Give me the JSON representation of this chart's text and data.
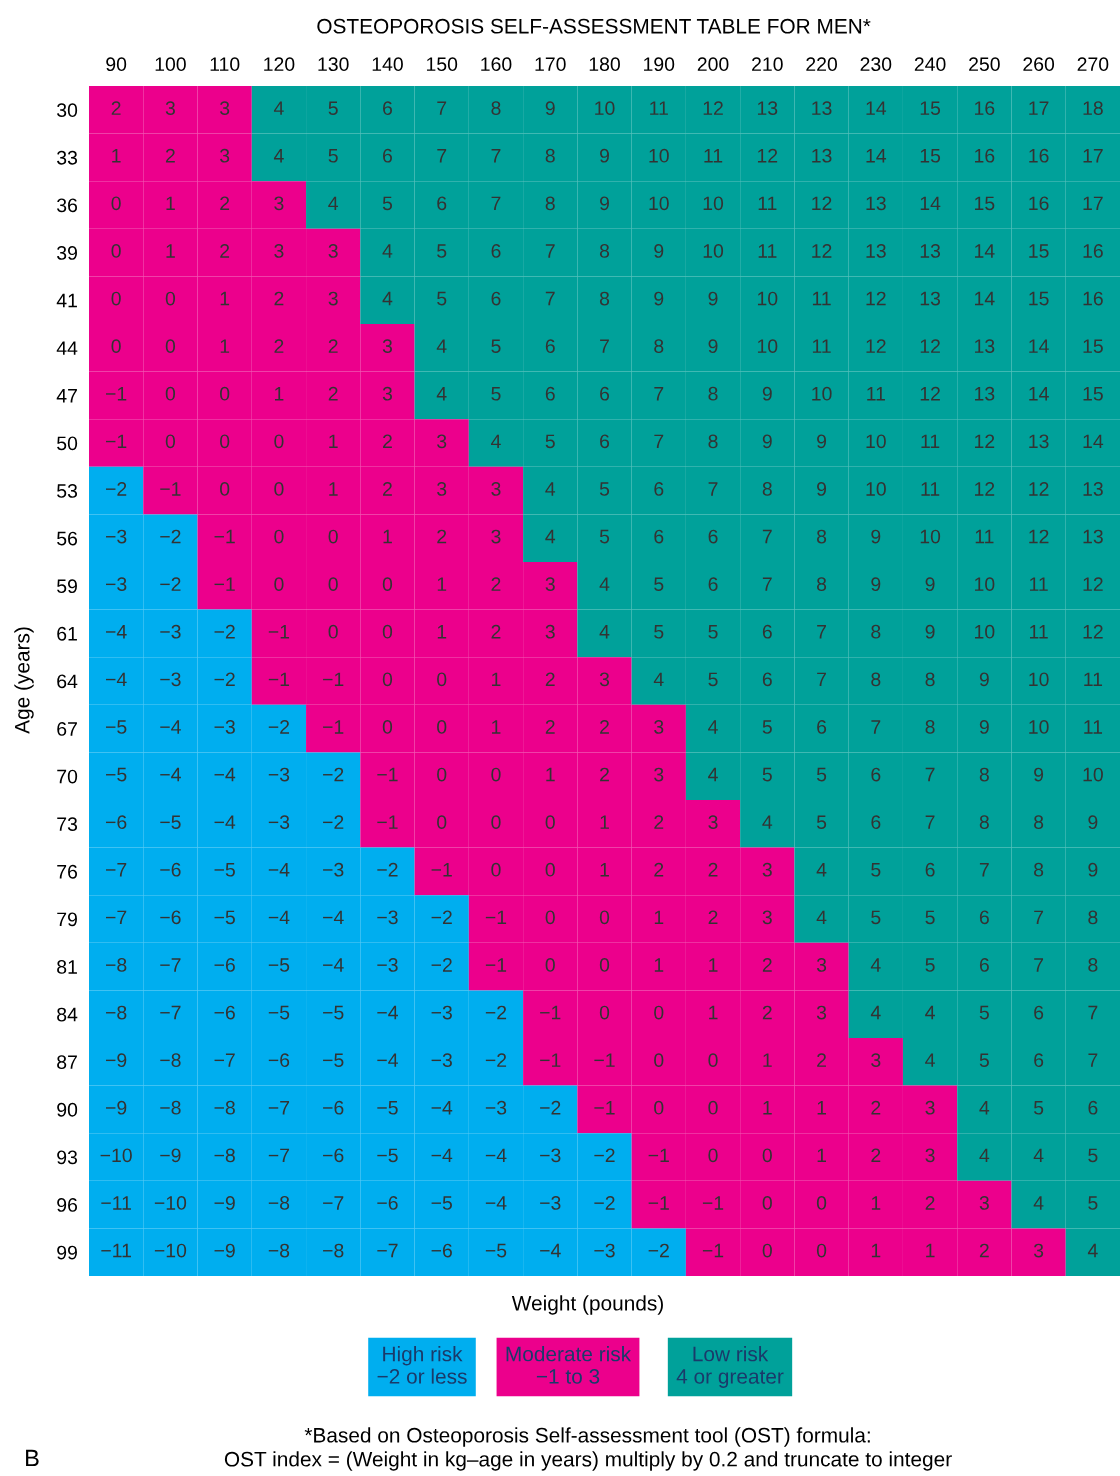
{
  "chart_data": {
    "type": "heatmap",
    "title": "OSTEOPOROSIS SELF-ASSESSMENT TABLE FOR MEN*",
    "xlabel": "Weight (pounds)",
    "ylabel": "Age (years)",
    "categories": [
      "90",
      "100",
      "110",
      "120",
      "130",
      "140",
      "150",
      "160",
      "170",
      "180",
      "190",
      "200",
      "210",
      "220",
      "230",
      "240",
      "250",
      "260",
      "270"
    ],
    "y_categories": [
      "30",
      "33",
      "36",
      "39",
      "41",
      "44",
      "47",
      "50",
      "53",
      "56",
      "59",
      "61",
      "64",
      "67",
      "70",
      "73",
      "76",
      "79",
      "81",
      "84",
      "87",
      "90",
      "93",
      "96",
      "99"
    ],
    "cells": [
      [
        2,
        3,
        3,
        4,
        5,
        6,
        7,
        8,
        9,
        10,
        11,
        12,
        13,
        13,
        14,
        15,
        16,
        17,
        18
      ],
      [
        1,
        2,
        3,
        4,
        5,
        6,
        7,
        7,
        8,
        9,
        10,
        11,
        12,
        13,
        14,
        15,
        16,
        16,
        17
      ],
      [
        0,
        1,
        2,
        3,
        4,
        5,
        6,
        7,
        8,
        9,
        10,
        10,
        11,
        12,
        13,
        14,
        15,
        16,
        17
      ],
      [
        0,
        1,
        2,
        3,
        3,
        4,
        5,
        6,
        7,
        8,
        9,
        10,
        11,
        12,
        13,
        13,
        14,
        15,
        16
      ],
      [
        0,
        0,
        1,
        2,
        3,
        4,
        5,
        6,
        7,
        8,
        9,
        9,
        10,
        11,
        12,
        13,
        14,
        15,
        16
      ],
      [
        0,
        0,
        1,
        2,
        2,
        3,
        4,
        5,
        6,
        7,
        8,
        9,
        10,
        11,
        12,
        12,
        13,
        14,
        15
      ],
      [
        -1,
        0,
        0,
        1,
        2,
        3,
        4,
        5,
        6,
        6,
        7,
        8,
        9,
        10,
        11,
        12,
        13,
        14,
        15
      ],
      [
        -1,
        0,
        0,
        0,
        1,
        2,
        3,
        4,
        5,
        6,
        7,
        8,
        9,
        9,
        10,
        11,
        12,
        13,
        14
      ],
      [
        -2,
        -1,
        0,
        0,
        1,
        2,
        3,
        3,
        4,
        5,
        6,
        7,
        8,
        9,
        10,
        11,
        12,
        12,
        13
      ],
      [
        -3,
        -2,
        -1,
        0,
        0,
        1,
        2,
        3,
        4,
        5,
        6,
        6,
        7,
        8,
        9,
        10,
        11,
        12,
        13
      ],
      [
        -3,
        -2,
        -1,
        0,
        0,
        0,
        1,
        2,
        3,
        4,
        5,
        6,
        7,
        8,
        9,
        9,
        10,
        11,
        12
      ],
      [
        -4,
        -3,
        -2,
        -1,
        0,
        0,
        1,
        2,
        3,
        4,
        5,
        5,
        6,
        7,
        8,
        9,
        10,
        11,
        12
      ],
      [
        -4,
        -3,
        -2,
        -1,
        -1,
        0,
        0,
        1,
        2,
        3,
        4,
        5,
        6,
        7,
        8,
        8,
        9,
        10,
        11
      ],
      [
        -5,
        -4,
        -3,
        -2,
        -1,
        0,
        0,
        1,
        2,
        2,
        3,
        4,
        5,
        6,
        7,
        8,
        9,
        10,
        11
      ],
      [
        -5,
        -4,
        -4,
        -3,
        -2,
        -1,
        0,
        0,
        1,
        2,
        3,
        4,
        5,
        5,
        6,
        7,
        8,
        9,
        10
      ],
      [
        -6,
        -5,
        -4,
        -3,
        -2,
        -1,
        0,
        0,
        0,
        1,
        2,
        3,
        4,
        5,
        6,
        7,
        8,
        8,
        9
      ],
      [
        -7,
        -6,
        -5,
        -4,
        -3,
        -2,
        -1,
        0,
        0,
        1,
        2,
        2,
        3,
        4,
        5,
        6,
        7,
        8,
        9
      ],
      [
        -7,
        -6,
        -5,
        -4,
        -4,
        -3,
        -2,
        -1,
        0,
        0,
        1,
        2,
        3,
        4,
        5,
        5,
        6,
        7,
        8
      ],
      [
        -8,
        -7,
        -6,
        -5,
        -4,
        -3,
        -2,
        -1,
        0,
        0,
        1,
        1,
        2,
        3,
        4,
        5,
        6,
        7,
        8
      ],
      [
        -8,
        -7,
        -6,
        -5,
        -5,
        -4,
        -3,
        -2,
        -1,
        0,
        0,
        1,
        2,
        3,
        4,
        4,
        5,
        6,
        7
      ],
      [
        -9,
        -8,
        -7,
        -6,
        -5,
        -4,
        -3,
        -2,
        -1,
        -1,
        0,
        0,
        1,
        2,
        3,
        4,
        5,
        6,
        7
      ],
      [
        -9,
        -8,
        -8,
        -7,
        -6,
        -5,
        -4,
        -3,
        -2,
        -1,
        0,
        0,
        1,
        1,
        2,
        3,
        4,
        5,
        6
      ],
      [
        -10,
        -9,
        -8,
        -7,
        -6,
        -5,
        -4,
        -4,
        -3,
        -2,
        -1,
        0,
        0,
        1,
        2,
        3,
        4,
        4,
        5
      ],
      [
        -11,
        -10,
        -9,
        -8,
        -7,
        -6,
        -5,
        -4,
        -3,
        -2,
        -1,
        -1,
        0,
        0,
        1,
        2,
        3,
        4,
        5
      ],
      [
        -11,
        -10,
        -9,
        -8,
        -8,
        -7,
        -6,
        -5,
        -4,
        -3,
        -2,
        -1,
        0,
        0,
        1,
        1,
        2,
        3,
        4
      ]
    ],
    "colors": [
      [
        "#ec008c",
        "#ec008c",
        "#ec008c",
        "#00a19a",
        "#00a19a",
        "#00a19a",
        "#00a19a",
        "#00a19a",
        "#00a19a",
        "#00a19a",
        "#00a19a",
        "#00a19a",
        "#00a19a",
        "#00a19a",
        "#00a19a",
        "#00a19a",
        "#00a19a",
        "#00a19a",
        "#00a19a"
      ],
      [
        "#ec008c",
        "#ec008c",
        "#ec008c",
        "#00a19a",
        "#00a19a",
        "#00a19a",
        "#00a19a",
        "#00a19a",
        "#00a19a",
        "#00a19a",
        "#00a19a",
        "#00a19a",
        "#00a19a",
        "#00a19a",
        "#00a19a",
        "#00a19a",
        "#00a19a",
        "#00a19a",
        "#00a19a"
      ],
      [
        "#ec008c",
        "#ec008c",
        "#ec008c",
        "#ec008c",
        "#00a19a",
        "#00a19a",
        "#00a19a",
        "#00a19a",
        "#00a19a",
        "#00a19a",
        "#00a19a",
        "#00a19a",
        "#00a19a",
        "#00a19a",
        "#00a19a",
        "#00a19a",
        "#00a19a",
        "#00a19a",
        "#00a19a"
      ],
      [
        "#ec008c",
        "#ec008c",
        "#ec008c",
        "#ec008c",
        "#ec008c",
        "#00a19a",
        "#00a19a",
        "#00a19a",
        "#00a19a",
        "#00a19a",
        "#00a19a",
        "#00a19a",
        "#00a19a",
        "#00a19a",
        "#00a19a",
        "#00a19a",
        "#00a19a",
        "#00a19a",
        "#00a19a"
      ],
      [
        "#ec008c",
        "#ec008c",
        "#ec008c",
        "#ec008c",
        "#ec008c",
        "#00a19a",
        "#00a19a",
        "#00a19a",
        "#00a19a",
        "#00a19a",
        "#00a19a",
        "#00a19a",
        "#00a19a",
        "#00a19a",
        "#00a19a",
        "#00a19a",
        "#00a19a",
        "#00a19a",
        "#00a19a"
      ],
      [
        "#ec008c",
        "#ec008c",
        "#ec008c",
        "#ec008c",
        "#ec008c",
        "#ec008c",
        "#00a19a",
        "#00a19a",
        "#00a19a",
        "#00a19a",
        "#00a19a",
        "#00a19a",
        "#00a19a",
        "#00a19a",
        "#00a19a",
        "#00a19a",
        "#00a19a",
        "#00a19a",
        "#00a19a"
      ],
      [
        "#ec008c",
        "#ec008c",
        "#ec008c",
        "#ec008c",
        "#ec008c",
        "#ec008c",
        "#00a19a",
        "#00a19a",
        "#00a19a",
        "#00a19a",
        "#00a19a",
        "#00a19a",
        "#00a19a",
        "#00a19a",
        "#00a19a",
        "#00a19a",
        "#00a19a",
        "#00a19a",
        "#00a19a"
      ],
      [
        "#ec008c",
        "#ec008c",
        "#ec008c",
        "#ec008c",
        "#ec008c",
        "#ec008c",
        "#ec008c",
        "#00a19a",
        "#00a19a",
        "#00a19a",
        "#00a19a",
        "#00a19a",
        "#00a19a",
        "#00a19a",
        "#00a19a",
        "#00a19a",
        "#00a19a",
        "#00a19a",
        "#00a19a"
      ],
      [
        "#00aeef",
        "#ec008c",
        "#ec008c",
        "#ec008c",
        "#ec008c",
        "#ec008c",
        "#ec008c",
        "#ec008c",
        "#00a19a",
        "#00a19a",
        "#00a19a",
        "#00a19a",
        "#00a19a",
        "#00a19a",
        "#00a19a",
        "#00a19a",
        "#00a19a",
        "#00a19a",
        "#00a19a"
      ],
      [
        "#00aeef",
        "#00aeef",
        "#ec008c",
        "#ec008c",
        "#ec008c",
        "#ec008c",
        "#ec008c",
        "#ec008c",
        "#00a19a",
        "#00a19a",
        "#00a19a",
        "#00a19a",
        "#00a19a",
        "#00a19a",
        "#00a19a",
        "#00a19a",
        "#00a19a",
        "#00a19a",
        "#00a19a"
      ],
      [
        "#00aeef",
        "#00aeef",
        "#ec008c",
        "#ec008c",
        "#ec008c",
        "#ec008c",
        "#ec008c",
        "#ec008c",
        "#ec008c",
        "#00a19a",
        "#00a19a",
        "#00a19a",
        "#00a19a",
        "#00a19a",
        "#00a19a",
        "#00a19a",
        "#00a19a",
        "#00a19a",
        "#00a19a"
      ],
      [
        "#00aeef",
        "#00aeef",
        "#00aeef",
        "#ec008c",
        "#ec008c",
        "#ec008c",
        "#ec008c",
        "#ec008c",
        "#ec008c",
        "#00a19a",
        "#00a19a",
        "#00a19a",
        "#00a19a",
        "#00a19a",
        "#00a19a",
        "#00a19a",
        "#00a19a",
        "#00a19a",
        "#00a19a"
      ],
      [
        "#00aeef",
        "#00aeef",
        "#00aeef",
        "#ec008c",
        "#ec008c",
        "#ec008c",
        "#ec008c",
        "#ec008c",
        "#ec008c",
        "#ec008c",
        "#00a19a",
        "#00a19a",
        "#00a19a",
        "#00a19a",
        "#00a19a",
        "#00a19a",
        "#00a19a",
        "#00a19a",
        "#00a19a"
      ],
      [
        "#00aeef",
        "#00aeef",
        "#00aeef",
        "#00aeef",
        "#ec008c",
        "#ec008c",
        "#ec008c",
        "#ec008c",
        "#ec008c",
        "#ec008c",
        "#ec008c",
        "#00a19a",
        "#00a19a",
        "#00a19a",
        "#00a19a",
        "#00a19a",
        "#00a19a",
        "#00a19a",
        "#00a19a"
      ],
      [
        "#00aeef",
        "#00aeef",
        "#00aeef",
        "#00aeef",
        "#00aeef",
        "#ec008c",
        "#ec008c",
        "#ec008c",
        "#ec008c",
        "#ec008c",
        "#ec008c",
        "#00a19a",
        "#00a19a",
        "#00a19a",
        "#00a19a",
        "#00a19a",
        "#00a19a",
        "#00a19a",
        "#00a19a"
      ],
      [
        "#00aeef",
        "#00aeef",
        "#00aeef",
        "#00aeef",
        "#00aeef",
        "#ec008c",
        "#ec008c",
        "#ec008c",
        "#ec008c",
        "#ec008c",
        "#ec008c",
        "#ec008c",
        "#00a19a",
        "#00a19a",
        "#00a19a",
        "#00a19a",
        "#00a19a",
        "#00a19a",
        "#00a19a"
      ],
      [
        "#00aeef",
        "#00aeef",
        "#00aeef",
        "#00aeef",
        "#00aeef",
        "#00aeef",
        "#ec008c",
        "#ec008c",
        "#ec008c",
        "#ec008c",
        "#ec008c",
        "#ec008c",
        "#ec008c",
        "#00a19a",
        "#00a19a",
        "#00a19a",
        "#00a19a",
        "#00a19a",
        "#00a19a"
      ],
      [
        "#00aeef",
        "#00aeef",
        "#00aeef",
        "#00aeef",
        "#00aeef",
        "#00aeef",
        "#00aeef",
        "#ec008c",
        "#ec008c",
        "#ec008c",
        "#ec008c",
        "#ec008c",
        "#ec008c",
        "#00a19a",
        "#00a19a",
        "#00a19a",
        "#00a19a",
        "#00a19a",
        "#00a19a"
      ],
      [
        "#00aeef",
        "#00aeef",
        "#00aeef",
        "#00aeef",
        "#00aeef",
        "#00aeef",
        "#00aeef",
        "#ec008c",
        "#ec008c",
        "#ec008c",
        "#ec008c",
        "#ec008c",
        "#ec008c",
        "#ec008c",
        "#00a19a",
        "#00a19a",
        "#00a19a",
        "#00a19a",
        "#00a19a"
      ],
      [
        "#00aeef",
        "#00aeef",
        "#00aeef",
        "#00aeef",
        "#00aeef",
        "#00aeef",
        "#00aeef",
        "#00aeef",
        "#ec008c",
        "#ec008c",
        "#ec008c",
        "#ec008c",
        "#ec008c",
        "#ec008c",
        "#00a19a",
        "#00a19a",
        "#00a19a",
        "#00a19a",
        "#00a19a"
      ],
      [
        "#00aeef",
        "#00aeef",
        "#00aeef",
        "#00aeef",
        "#00aeef",
        "#00aeef",
        "#00aeef",
        "#00aeef",
        "#ec008c",
        "#ec008c",
        "#ec008c",
        "#ec008c",
        "#ec008c",
        "#ec008c",
        "#ec008c",
        "#00a19a",
        "#00a19a",
        "#00a19a",
        "#00a19a"
      ],
      [
        "#00aeef",
        "#00aeef",
        "#00aeef",
        "#00aeef",
        "#00aeef",
        "#00aeef",
        "#00aeef",
        "#00aeef",
        "#00aeef",
        "#ec008c",
        "#ec008c",
        "#ec008c",
        "#ec008c",
        "#ec008c",
        "#ec008c",
        "#ec008c",
        "#00a19a",
        "#00a19a",
        "#00a19a"
      ],
      [
        "#00aeef",
        "#00aeef",
        "#00aeef",
        "#00aeef",
        "#00aeef",
        "#00aeef",
        "#00aeef",
        "#00aeef",
        "#00aeef",
        "#00aeef",
        "#ec008c",
        "#ec008c",
        "#ec008c",
        "#ec008c",
        "#ec008c",
        "#ec008c",
        "#00a19a",
        "#00a19a",
        "#00a19a"
      ],
      [
        "#00aeef",
        "#00aeef",
        "#00aeef",
        "#00aeef",
        "#00aeef",
        "#00aeef",
        "#00aeef",
        "#00aeef",
        "#00aeef",
        "#00aeef",
        "#ec008c",
        "#ec008c",
        "#ec008c",
        "#ec008c",
        "#ec008c",
        "#ec008c",
        "#ec008c",
        "#00a19a",
        "#00a19a"
      ],
      [
        "#00aeef",
        "#00aeef",
        "#00aeef",
        "#00aeef",
        "#00aeef",
        "#00aeef",
        "#00aeef",
        "#00aeef",
        "#00aeef",
        "#00aeef",
        "#00aeef",
        "#ec008c",
        "#ec008c",
        "#ec008c",
        "#ec008c",
        "#ec008c",
        "#ec008c",
        "#ec008c",
        "#00a19a"
      ]
    ],
    "data_labels": true,
    "annotations": [
      "High risk\n−2 or less",
      "Moderate risk\n−1 to 3",
      "Low risk\n4 or greater",
      "*Based on Osteoporosis Self-assessment tool (OST) formula:\nOST index = (Weight in kg–age in years) multiply by 0.2 and truncate to integer",
      "B"
    ]
  }
}
